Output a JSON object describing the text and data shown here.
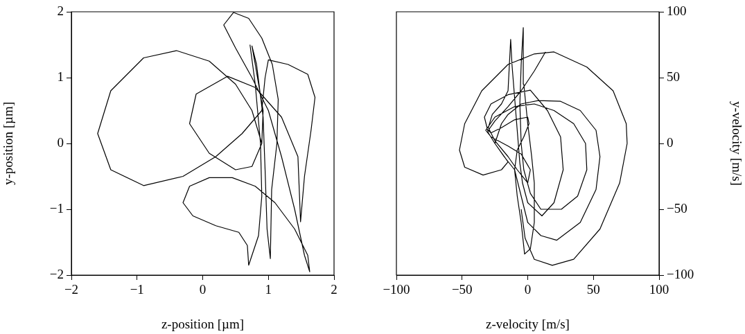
{
  "chart_data": [
    {
      "type": "line",
      "xlabel": "z-position [µm]",
      "ylabel": "y-position [µm]",
      "xlim": [
        -2,
        2
      ],
      "ylim": [
        -2,
        2
      ],
      "xticks": [
        -2,
        -1,
        0,
        1,
        2
      ],
      "yticks": [
        -2,
        -1,
        0,
        1,
        2
      ],
      "grid": false,
      "legend": false,
      "marker": "none",
      "line_style": "solid",
      "series": [
        {
          "color": "#000000",
          "x": [
            0.72,
            0.8,
            0.88,
            0.9,
            0.85,
            0.7,
            0.68,
            0.55,
            0.2,
            -0.15,
            -0.3,
            -0.2,
            0.1,
            0.45,
            0.8,
            1.1,
            1.4,
            1.6,
            1.63,
            1.55,
            1.4,
            1.2,
            1.0,
            0.75,
            0.5,
            0.32,
            0.47,
            0.7,
            0.9,
            1.06,
            1.15,
            1.13,
            1.05,
            1.03,
            0.98,
            0.95,
            0.92,
            0.82,
            0.75,
            0.8,
            0.92,
            0.9,
            0.75,
            0.5,
            0.1,
            -0.2,
            -0.1,
            0.38,
            0.8,
            1.2,
            1.45,
            1.49,
            1.55,
            1.65,
            1.71,
            1.6,
            1.3,
            1.0,
            0.95,
            0.9,
            0.6,
            0.2,
            -0.3,
            -0.9,
            -1.4,
            -1.6,
            -1.4,
            -0.9,
            -0.4,
            0.1,
            0.5,
            0.75,
            0.9
          ],
          "values": [
            1.5,
            0.9,
            0,
            -0.8,
            -1.4,
            -1.85,
            -1.55,
            -1.35,
            -1.25,
            -1.1,
            -0.9,
            -0.65,
            -0.52,
            -0.52,
            -0.65,
            -0.9,
            -1.3,
            -1.7,
            -1.95,
            -1.7,
            -1.0,
            -0.2,
            0.5,
            1.0,
            1.45,
            1.8,
            1.99,
            1.9,
            1.6,
            1.2,
            0.67,
            0,
            -0.7,
            -1.75,
            -1.3,
            -0.4,
            0.4,
            1.2,
            1.48,
            1.2,
            0.5,
            0,
            -0.35,
            -0.4,
            -0.15,
            0.3,
            0.75,
            1.02,
            0.85,
            0.4,
            -0.2,
            -1.19,
            -0.5,
            0.2,
            0.7,
            1.05,
            1.2,
            1.27,
            1.0,
            0.5,
            0.15,
            -0.2,
            -0.5,
            -0.64,
            -0.4,
            0.15,
            0.8,
            1.3,
            1.41,
            1.25,
            0.9,
            0.5,
            0
          ]
        }
      ]
    },
    {
      "type": "line",
      "xlabel": "z-velocity [m/s]",
      "y2label": "y-velocity [m/s]",
      "xlim": [
        -100,
        100
      ],
      "y2lim": [
        -100,
        100
      ],
      "xticks": [
        -100,
        -50,
        0,
        50,
        100
      ],
      "y2ticks": [
        -100,
        -50,
        0,
        50,
        100
      ],
      "grid": false,
      "legend": false,
      "marker": "none",
      "line_style": "solid",
      "series": [
        {
          "color": "#000000",
          "axis": "y2",
          "x": [
            13.5,
            5,
            -5,
            -15,
            -25,
            -30,
            -28,
            -20,
            -10,
            0,
            1,
            -3,
            -8,
            -10,
            -8,
            -5,
            -2.4,
            2,
            5,
            5,
            3,
            0,
            -3,
            -3.4,
            -5,
            -6,
            -5,
            -3,
            2,
            10,
            25.6,
            38,
            45,
            44,
            35,
            20,
            5,
            -10,
            -25,
            -32,
            -28,
            -15,
            -5,
            2,
            0,
            -8,
            -15,
            -25,
            -30,
            -27,
            -20,
            -15,
            -13,
            -12,
            -10,
            -8,
            -6,
            -4,
            0,
            10.8,
            20,
            27,
            25,
            15,
            2,
            -15,
            -28,
            -33,
            -30,
            -25,
            -18,
            -10,
            -5,
            0,
            10,
            22,
            40,
            52,
            55,
            52,
            40,
            25,
            8,
            -5,
            -15,
            -20,
            -25,
            -15,
            -20,
            -34,
            -48,
            -52,
            -48,
            -35,
            -15,
            5,
            20,
            45,
            65,
            75,
            75.7,
            70,
            55,
            35,
            18.7,
            5,
            -2,
            -5
          ],
          "values": [
            69.5,
            55,
            40,
            28,
            17,
            10,
            8,
            12,
            18,
            20,
            15,
            5,
            -5,
            -20,
            -40,
            -60,
            -84,
            -80,
            -60,
            -30,
            -10,
            15,
            45,
            88,
            60,
            30,
            0,
            -20,
            -38,
            -50,
            -50,
            -40,
            -20,
            0,
            15,
            25,
            30,
            28,
            20,
            10,
            5,
            -2,
            -8,
            -20,
            -30,
            -20,
            -10,
            2,
            12,
            22,
            30,
            40,
            79,
            60,
            35,
            10,
            -15,
            -30,
            -45,
            -55,
            -45,
            -20,
            5,
            25,
            40.5,
            37,
            30,
            20,
            8,
            0,
            -10,
            -20,
            -40,
            -60,
            -70,
            -73.5,
            -60,
            -35,
            -10,
            10,
            25,
            32,
            32.6,
            30,
            22,
            15,
            0,
            -14,
            -20,
            -24,
            -18,
            -5,
            15,
            40,
            60,
            68,
            69.5,
            58,
            40,
            15,
            0,
            -30,
            -65,
            -88,
            -92.6,
            -88,
            -72,
            -50
          ]
        }
      ]
    }
  ]
}
